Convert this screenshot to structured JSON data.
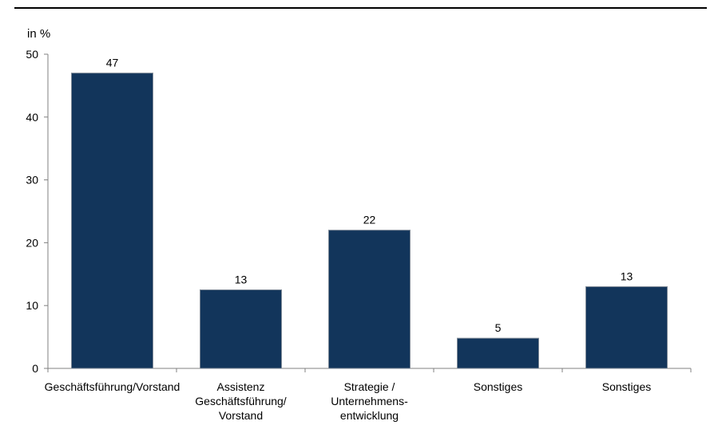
{
  "chart_data": {
    "type": "bar",
    "ylabel": "in %",
    "ylim": [
      0,
      50
    ],
    "yticks": [
      0,
      10,
      20,
      30,
      40,
      50
    ],
    "categories": [
      [
        "Geschäftsführung/Vorstand"
      ],
      [
        "Assistenz",
        "Geschäftsführung/",
        "Vorstand"
      ],
      [
        "Strategie /",
        "Unternehmens-",
        "entwicklung"
      ],
      [
        "Sonstiges"
      ],
      [
        "Sonstiges"
      ]
    ],
    "values": [
      47,
      12.5,
      22,
      4.8,
      13
    ],
    "data_labels": [
      "47",
      "13",
      "22",
      "5",
      "13"
    ],
    "colors": {
      "bar": "#12355b",
      "axis": "#808080",
      "top_rule": "#000000"
    },
    "grid": false,
    "legend": "none"
  }
}
